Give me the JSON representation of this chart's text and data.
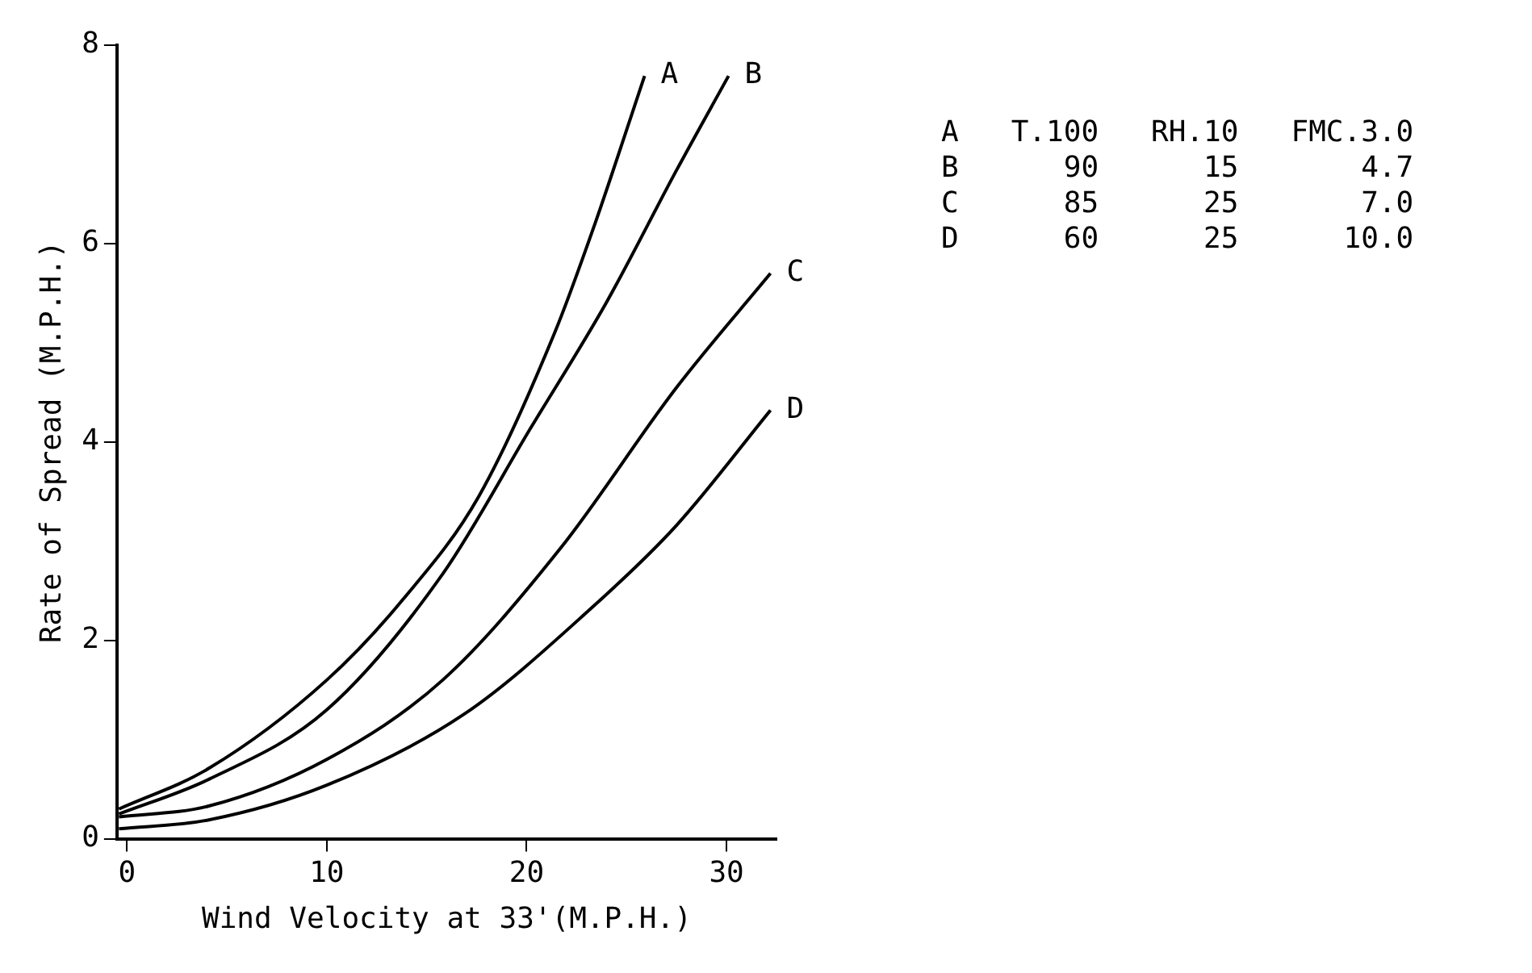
{
  "chart_data": {
    "type": "line",
    "xlabel": "Wind Velocity at 33'(M.P.H.)",
    "ylabel": "Rate of Spread (M.P.H.)",
    "xlim": [
      -0.5,
      32.5
    ],
    "xticks": [
      0,
      10,
      20,
      30
    ],
    "ylim": [
      0,
      8
    ],
    "yticks": [
      0,
      2,
      4,
      6,
      8
    ],
    "grid": false,
    "legend": false,
    "marker": "none",
    "line_style": "solid",
    "series": [
      {
        "name": "A",
        "color": "#000000",
        "x": [
          -0.4,
          4.1,
          10,
          13.8,
          17.6,
          21.4,
          23.4,
          25.9
        ],
        "values": [
          0.3,
          0.71,
          1.6,
          2.41,
          3.45,
          5.1,
          6.19,
          7.69
        ]
      },
      {
        "name": "B",
        "color": "#000000",
        "x": [
          -0.4,
          4.1,
          10,
          15.8,
          20.2,
          24,
          27.5,
          30.1
        ],
        "values": [
          0.25,
          0.6,
          1.3,
          2.67,
          4.14,
          5.41,
          6.74,
          7.69
        ]
      },
      {
        "name": "C",
        "color": "#000000",
        "x": [
          -0.4,
          4.1,
          10,
          15.8,
          21.7,
          27.5,
          32.2
        ],
        "values": [
          0.22,
          0.33,
          0.8,
          1.6,
          2.93,
          4.55,
          5.7
        ]
      },
      {
        "name": "D",
        "color": "#000000",
        "x": [
          -0.4,
          4.1,
          10,
          16.9,
          23.1,
          27.5,
          32.2
        ],
        "values": [
          0.1,
          0.19,
          0.54,
          1.26,
          2.3,
          3.16,
          4.32
        ]
      }
    ],
    "annotations": [
      "A   T.100   RH.10   FMC.3.0",
      "B      90      15       4.7",
      "C      85      25       7.0",
      "D      60      25      10.0"
    ]
  }
}
